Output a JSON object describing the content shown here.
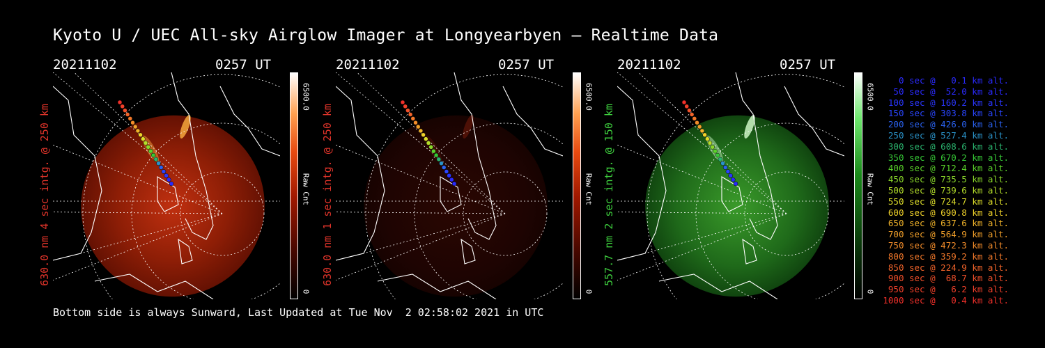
{
  "title": "Kyoto U / UEC All-sky Airglow Imager at Longyearbyen — Realtime Data",
  "footer": "Bottom side is always Sunward, Last Updated at Tue Nov  2 02:58:02 2021 in UTC",
  "panels": [
    {
      "date": "20211102",
      "time": "0257 UT",
      "ylabel": "630.0 nm 4 sec intg. @ 250 km",
      "colormap": "red",
      "label_color": "#e0342a",
      "brightness": "bright",
      "cbar_max": "6500.0",
      "cbar_unit": "Raw Cnt",
      "cbar_min": "0"
    },
    {
      "date": "20211102",
      "time": "0257 UT",
      "ylabel": "630.0 nm 1 sec intg. @ 250 km",
      "colormap": "red",
      "label_color": "#e0342a",
      "brightness": "dim",
      "cbar_max": "6500.0",
      "cbar_unit": "Raw Cnt",
      "cbar_min": "0"
    },
    {
      "date": "20211102",
      "time": "0257 UT",
      "ylabel": "557.7 nm 2 sec intg. @ 150 km",
      "colormap": "green",
      "label_color": "#3ecf3e",
      "brightness": "medium",
      "cbar_max": "6500.0",
      "cbar_unit": "Raw Cnt",
      "cbar_min": "0"
    }
  ],
  "legend": [
    {
      "text": "0 sec @   0.1 km alt.",
      "color": "#2a2aff"
    },
    {
      "text": "50 sec @  52.0 km alt.",
      "color": "#2a2aff"
    },
    {
      "text": "100 sec @ 160.2 km alt.",
      "color": "#2a36ff"
    },
    {
      "text": "150 sec @ 303.8 km alt.",
      "color": "#2a46ff"
    },
    {
      "text": "200 sec @ 426.0 km alt.",
      "color": "#2a62f0"
    },
    {
      "text": "250 sec @ 527.4 km alt.",
      "color": "#2a92c8"
    },
    {
      "text": "300 sec @ 608.6 km alt.",
      "color": "#2ab46e"
    },
    {
      "text": "350 sec @ 670.2 km alt.",
      "color": "#36c836"
    },
    {
      "text": "400 sec @ 712.4 km alt.",
      "color": "#5ad22a"
    },
    {
      "text": "450 sec @ 735.5 km alt.",
      "color": "#8ad82a"
    },
    {
      "text": "500 sec @ 739.6 km alt.",
      "color": "#b4de2a"
    },
    {
      "text": "550 sec @ 724.7 km alt.",
      "color": "#dede2a"
    },
    {
      "text": "600 sec @ 690.8 km alt.",
      "color": "#f0d22a"
    },
    {
      "text": "650 sec @ 637.6 km alt.",
      "color": "#f2b42a"
    },
    {
      "text": "700 sec @ 564.9 km alt.",
      "color": "#f2a02a"
    },
    {
      "text": "750 sec @ 472.3 km alt.",
      "color": "#f28c2a"
    },
    {
      "text": "800 sec @ 359.2 km alt.",
      "color": "#f2782a"
    },
    {
      "text": "850 sec @ 224.9 km alt.",
      "color": "#f2642a"
    },
    {
      "text": "900 sec @  68.7 km alt.",
      "color": "#f2502a"
    },
    {
      "text": "950 sec @   6.2 km alt.",
      "color": "#f2402a"
    },
    {
      "text": "1000 sec @   0.4 km alt.",
      "color": "#f2302a"
    }
  ],
  "chart_data": {
    "type": "heatmap",
    "title": "Kyoto U / UEC All-sky Airglow Imager at Longyearbyen — Realtime Data",
    "panels": [
      {
        "wavelength_nm": 630.0,
        "integration_sec": 4,
        "altitude_km": 250,
        "colorbar_range": [
          0,
          6500.0
        ],
        "colorbar_unit": "Raw Cnt"
      },
      {
        "wavelength_nm": 630.0,
        "integration_sec": 1,
        "altitude_km": 250,
        "colorbar_range": [
          0,
          6500.0
        ],
        "colorbar_unit": "Raw Cnt"
      },
      {
        "wavelength_nm": 557.7,
        "integration_sec": 2,
        "altitude_km": 150,
        "colorbar_range": [
          0,
          6500.0
        ],
        "colorbar_unit": "Raw Cnt"
      }
    ],
    "trajectory": {
      "time_sec": [
        0,
        50,
        100,
        150,
        200,
        250,
        300,
        350,
        400,
        450,
        500,
        550,
        600,
        650,
        700,
        750,
        800,
        850,
        900,
        950,
        1000
      ],
      "altitude_km": [
        0.1,
        52.0,
        160.2,
        303.8,
        426.0,
        527.4,
        608.6,
        670.2,
        712.4,
        735.5,
        739.6,
        724.7,
        690.8,
        637.6,
        564.9,
        472.3,
        359.2,
        224.9,
        68.7,
        6.2,
        0.4
      ]
    }
  }
}
